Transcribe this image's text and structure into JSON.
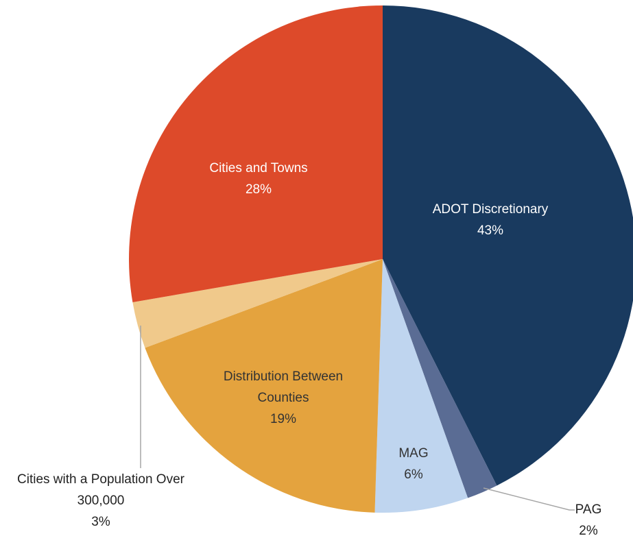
{
  "chart_data": {
    "type": "pie",
    "categories": [
      "ADOT Discretionary",
      "PAG",
      "MAG",
      "Distribution Between Counties",
      "Cities with a Population Over 300,000",
      "Cities and Towns"
    ],
    "values": [
      43,
      2,
      6,
      19,
      3,
      28
    ],
    "value_labels": [
      "43%",
      "2%",
      "6%",
      "19%",
      "3%",
      "28%"
    ],
    "colors": [
      "#193a5f",
      "#5a6c94",
      "#bfd5ef",
      "#e4a33e",
      "#f0c98b",
      "#dd4a2a"
    ]
  }
}
